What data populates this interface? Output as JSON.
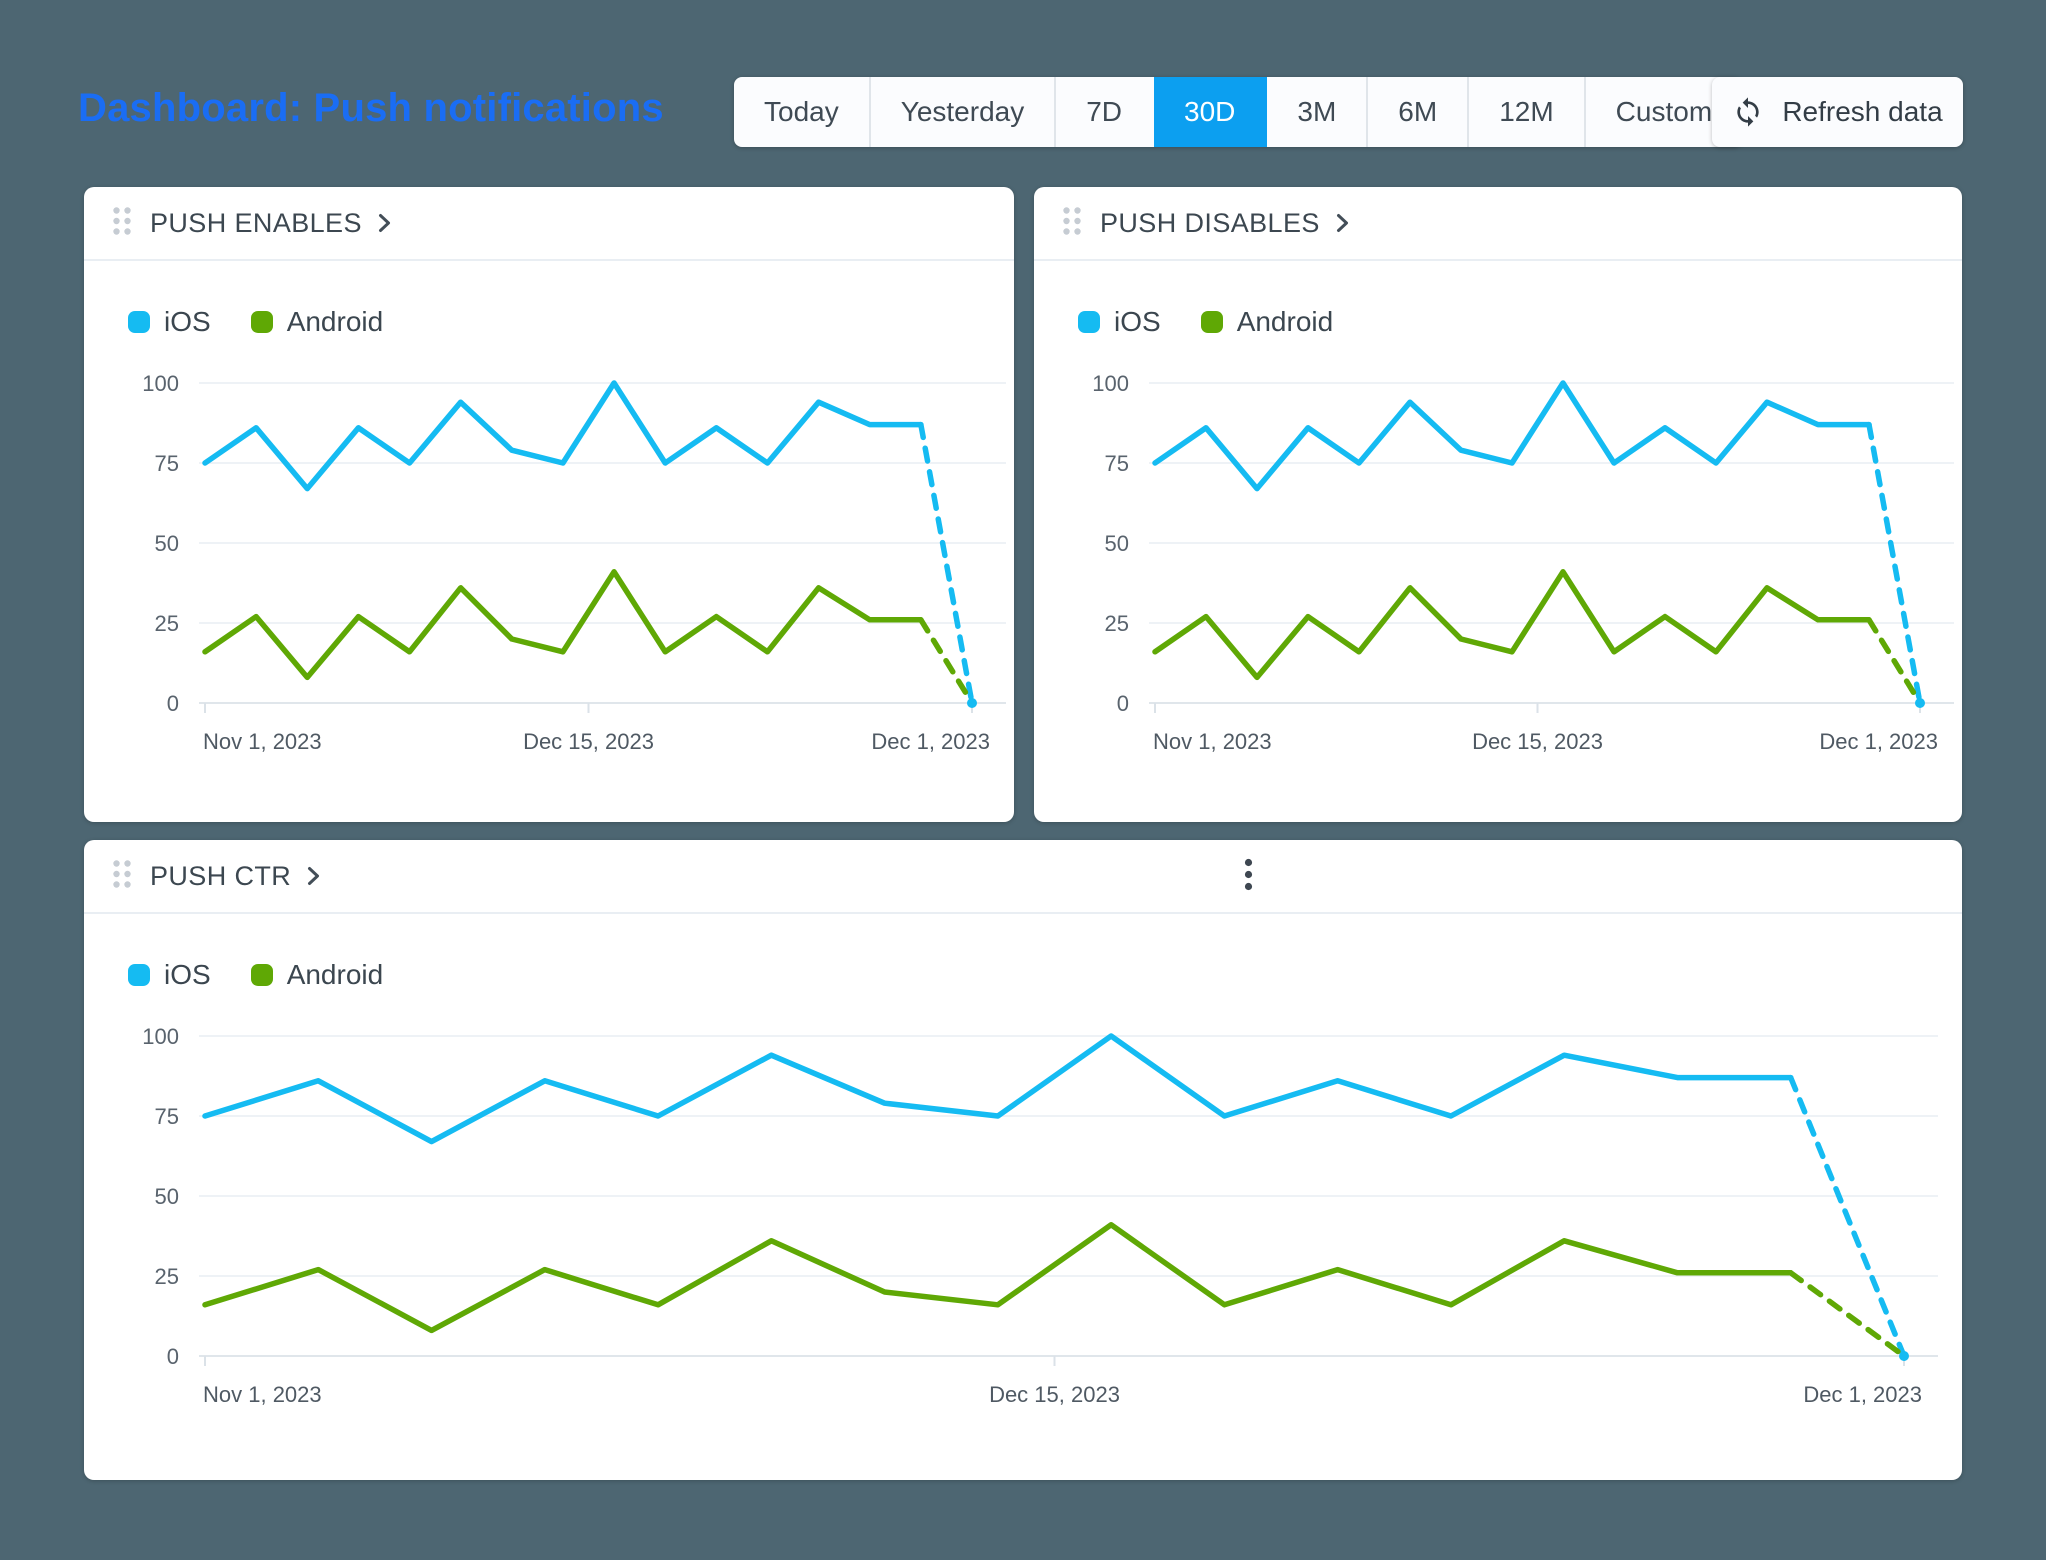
{
  "page": {
    "title": "Dashboard: Push notifications",
    "background_color": "#4d6672",
    "title_color": "#1a6df4"
  },
  "toolbar": {
    "ranges": [
      "Today",
      "Yesterday",
      "7D",
      "30D",
      "3M",
      "6M",
      "12M",
      "Custom"
    ],
    "selected_range": "30D",
    "selected_color": "#0c9ff0",
    "refresh_label": "Refresh data"
  },
  "icons": {
    "drag_handle": "six-dot-grid",
    "card_chevron": "chevron-right",
    "card_menu": "kebab-vertical",
    "refresh": "sync-arrows"
  },
  "colors": {
    "ios": "#15bbf2",
    "android": "#5fa805",
    "grid": "#eef2f6",
    "axis": "#e0e6eb"
  },
  "chart_data": [
    {
      "type": "line",
      "title": "PUSH ENABLES",
      "legend_position": "top-left",
      "grid": "horizontal",
      "ylim": [
        0,
        100
      ],
      "yticks": [
        100,
        75,
        50,
        25,
        0
      ],
      "x_tick_labels": [
        "Nov 1, 2023",
        "Dec 15, 2023",
        "Dec 1, 2023"
      ],
      "dashed_last_segment": true,
      "has_menu": false,
      "series": [
        {
          "name": "iOS",
          "color": "#15bbf2",
          "values": [
            75,
            86,
            67,
            86,
            75,
            94,
            79,
            75,
            100,
            75,
            86,
            75,
            94,
            87,
            87,
            0
          ]
        },
        {
          "name": "Android",
          "color": "#5fa805",
          "values": [
            16,
            27,
            8,
            27,
            16,
            36,
            20,
            16,
            41,
            16,
            27,
            16,
            36,
            26,
            26,
            0
          ]
        }
      ]
    },
    {
      "type": "line",
      "title": "PUSH DISABLES",
      "legend_position": "top-left",
      "grid": "horizontal",
      "ylim": [
        0,
        100
      ],
      "yticks": [
        100,
        75,
        50,
        25,
        0
      ],
      "x_tick_labels": [
        "Nov 1, 2023",
        "Dec 15, 2023",
        "Dec 1, 2023"
      ],
      "dashed_last_segment": true,
      "has_menu": false,
      "series": [
        {
          "name": "iOS",
          "color": "#15bbf2",
          "values": [
            75,
            86,
            67,
            86,
            75,
            94,
            79,
            75,
            100,
            75,
            86,
            75,
            94,
            87,
            87,
            0
          ]
        },
        {
          "name": "Android",
          "color": "#5fa805",
          "values": [
            16,
            27,
            8,
            27,
            16,
            36,
            20,
            16,
            41,
            16,
            27,
            16,
            36,
            26,
            26,
            0
          ]
        }
      ]
    },
    {
      "type": "line",
      "title": "PUSH CTR",
      "legend_position": "top-left",
      "grid": "horizontal",
      "ylim": [
        0,
        100
      ],
      "yticks": [
        100,
        75,
        50,
        25,
        0
      ],
      "x_tick_labels": [
        "Nov 1, 2023",
        "Dec 15, 2023",
        "Dec 1, 2023"
      ],
      "dashed_last_segment": true,
      "has_menu": true,
      "series": [
        {
          "name": "iOS",
          "color": "#15bbf2",
          "values": [
            75,
            86,
            67,
            86,
            75,
            94,
            79,
            75,
            100,
            75,
            86,
            75,
            94,
            87,
            87,
            0
          ]
        },
        {
          "name": "Android",
          "color": "#5fa805",
          "values": [
            16,
            27,
            8,
            27,
            16,
            36,
            20,
            16,
            41,
            16,
            27,
            16,
            36,
            26,
            26,
            0
          ]
        }
      ]
    }
  ]
}
